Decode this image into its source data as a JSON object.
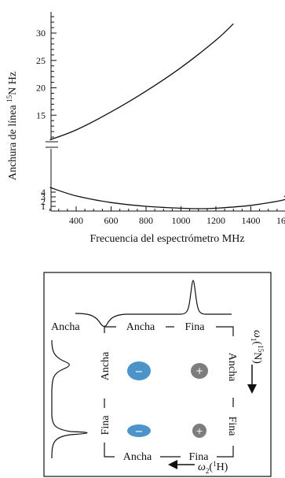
{
  "chart_data": {
    "type": "line",
    "ylabel_main": "Anchura de línea ",
    "ylabel_iso": "15",
    "ylabel_unit": "N Hz",
    "xlabel": "Frecuencia del espectrómetro MHz",
    "x_ticks": [
      "400",
      "600",
      "800",
      "1000",
      "1200",
      "1400",
      "1600"
    ],
    "y_ticks_upper": [
      "15",
      "20",
      "25",
      "30"
    ],
    "y_ticks_lower": [
      "1",
      "2",
      "3",
      "4"
    ],
    "xlim": [
      250,
      1700
    ],
    "series": [
      {
        "x": [
          250,
          400,
          600,
          800,
          1000,
          1200,
          1300
        ],
        "y": [
          10.5,
          12.3,
          15.6,
          19.4,
          23.7,
          28.7,
          31.7
        ]
      },
      {
        "x": [
          250,
          400,
          600,
          800,
          1000,
          1100,
          1200,
          1400,
          1600,
          1700
        ],
        "y": [
          5.0,
          3.2,
          1.8,
          1.0,
          0.6,
          0.5,
          0.6,
          1.2,
          2.4,
          3.2
        ]
      }
    ]
  },
  "diagram": {
    "left_label": "Ancha",
    "top_labels": [
      "Ancha",
      "Fina"
    ],
    "bottom_labels": [
      "Ancha",
      "Fina"
    ],
    "left_side_labels": [
      "Ancha",
      "Fina"
    ],
    "right_side_labels": [
      "Ancha",
      "Fina"
    ],
    "omega1_sym": "ω",
    "omega1_sub": "1",
    "omega1_nuc": "(",
    "omega1_iso": "15",
    "omega1_end": "N)",
    "omega2_sym": "ω",
    "omega2_sub": "2",
    "omega2_nuc": "(",
    "omega2_iso": "1",
    "omega2_end": "H)",
    "minus": "−",
    "plus": "+",
    "colors": {
      "blue_peak": "#4b93c8",
      "gray_peak": "#7d7d7d"
    }
  }
}
